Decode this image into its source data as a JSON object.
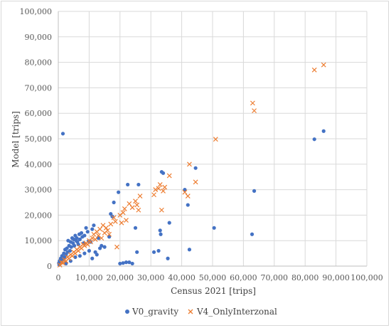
{
  "chart_data": {
    "type": "scatter",
    "title": "",
    "xlabel": "Census 2021 [trips]",
    "ylabel": "Model [trips]",
    "xlim": [
      0,
      100000
    ],
    "ylim": [
      0,
      100000
    ],
    "x_ticks": [
      "0",
      "10,000",
      "20,000",
      "30,000",
      "40,000",
      "50,000",
      "60,000",
      "70,000",
      "80,000",
      "90,000",
      "100,000"
    ],
    "y_ticks": [
      "0",
      "10,000",
      "20,000",
      "30,000",
      "40,000",
      "50,000",
      "60,000",
      "70,000",
      "80,000",
      "90,000",
      "100,000"
    ],
    "grid": true,
    "legend_position": "bottom",
    "series": [
      {
        "name": "V0_gravity",
        "marker": "circle",
        "color": "#4472c4",
        "points": [
          [
            86000,
            53000
          ],
          [
            83000,
            49800
          ],
          [
            63500,
            29500
          ],
          [
            62800,
            12500
          ],
          [
            50500,
            15000
          ],
          [
            44500,
            38500
          ],
          [
            42500,
            6500
          ],
          [
            42000,
            24000
          ],
          [
            41000,
            30000
          ],
          [
            36000,
            17000
          ],
          [
            35500,
            3000
          ],
          [
            34000,
            36500
          ],
          [
            33500,
            37000
          ],
          [
            33200,
            12500
          ],
          [
            33000,
            14000
          ],
          [
            32500,
            6000
          ],
          [
            31000,
            5500
          ],
          [
            26000,
            32000
          ],
          [
            25500,
            5500
          ],
          [
            25000,
            15000
          ],
          [
            24000,
            1000
          ],
          [
            22500,
            32000
          ],
          [
            22000,
            1500
          ],
          [
            21000,
            1200
          ],
          [
            20000,
            1000
          ],
          [
            19500,
            29000
          ],
          [
            23000,
            1500
          ],
          [
            18000,
            25000
          ],
          [
            17500,
            19500
          ],
          [
            17000,
            20500
          ],
          [
            16500,
            11500
          ],
          [
            15000,
            7500
          ],
          [
            14000,
            8000
          ],
          [
            13000,
            11000
          ],
          [
            12000,
            5500
          ],
          [
            11500,
            16000
          ],
          [
            11000,
            14500
          ],
          [
            10500,
            9500
          ],
          [
            9800,
            9800
          ],
          [
            9500,
            13500
          ],
          [
            9000,
            15000
          ],
          [
            8500,
            12000
          ],
          [
            8200,
            9000
          ],
          [
            7800,
            11500
          ],
          [
            7500,
            13000
          ],
          [
            7000,
            10500
          ],
          [
            6800,
            12500
          ],
          [
            6500,
            8500
          ],
          [
            6200,
            9500
          ],
          [
            6000,
            11000
          ],
          [
            5800,
            10000
          ],
          [
            5500,
            12000
          ],
          [
            5200,
            8000
          ],
          [
            5000,
            10500
          ],
          [
            4800,
            9000
          ],
          [
            4500,
            11000
          ],
          [
            4200,
            7500
          ],
          [
            4000,
            9500
          ],
          [
            3800,
            6000
          ],
          [
            3500,
            8000
          ],
          [
            3200,
            10000
          ],
          [
            3000,
            5500
          ],
          [
            2800,
            7000
          ],
          [
            2500,
            4500
          ],
          [
            2200,
            6500
          ],
          [
            2000,
            3500
          ],
          [
            1800,
            5000
          ],
          [
            1500,
            2500
          ],
          [
            1200,
            4000
          ],
          [
            1000,
            1500
          ],
          [
            800,
            3000
          ],
          [
            600,
            1000
          ],
          [
            400,
            2000
          ],
          [
            300,
            500
          ],
          [
            200,
            1200
          ],
          [
            1500,
            52000
          ],
          [
            2500,
            1000
          ],
          [
            4000,
            2000
          ],
          [
            5500,
            3500
          ],
          [
            7000,
            4000
          ],
          [
            8500,
            5000
          ],
          [
            10000,
            6000
          ],
          [
            11000,
            3000
          ],
          [
            12500,
            4500
          ],
          [
            13500,
            7000
          ]
        ]
      },
      {
        "name": "V4_OnlyInterzonal",
        "marker": "x",
        "color": "#ed7d31",
        "points": [
          [
            86000,
            79000
          ],
          [
            83000,
            77000
          ],
          [
            63000,
            64000
          ],
          [
            63500,
            61000
          ],
          [
            51000,
            49800
          ],
          [
            44500,
            33000
          ],
          [
            42500,
            40000
          ],
          [
            42000,
            27500
          ],
          [
            41000,
            29000
          ],
          [
            36000,
            35500
          ],
          [
            34500,
            31000
          ],
          [
            34000,
            29500
          ],
          [
            33500,
            22000
          ],
          [
            33000,
            32000
          ],
          [
            32500,
            30500
          ],
          [
            31500,
            30000
          ],
          [
            31000,
            28000
          ],
          [
            26500,
            27500
          ],
          [
            26000,
            22000
          ],
          [
            25500,
            24000
          ],
          [
            25000,
            25500
          ],
          [
            24000,
            23000
          ],
          [
            23000,
            24500
          ],
          [
            22000,
            18000
          ],
          [
            21500,
            22500
          ],
          [
            21000,
            21000
          ],
          [
            20500,
            17000
          ],
          [
            20000,
            20000
          ],
          [
            19000,
            7500
          ],
          [
            18500,
            17500
          ],
          [
            18000,
            19000
          ],
          [
            17000,
            16500
          ],
          [
            16500,
            12500
          ],
          [
            16000,
            14000
          ],
          [
            15500,
            15000
          ],
          [
            15000,
            13000
          ],
          [
            14500,
            16000
          ],
          [
            14000,
            11000
          ],
          [
            13500,
            14500
          ],
          [
            13000,
            12000
          ],
          [
            12500,
            13500
          ],
          [
            12000,
            10500
          ],
          [
            11500,
            12500
          ],
          [
            11000,
            11000
          ],
          [
            10500,
            9500
          ],
          [
            10000,
            10000
          ],
          [
            9500,
            8500
          ],
          [
            9000,
            9000
          ],
          [
            8500,
            8000
          ],
          [
            8000,
            8500
          ],
          [
            7500,
            7000
          ],
          [
            7000,
            7500
          ],
          [
            6500,
            6000
          ],
          [
            6000,
            6500
          ],
          [
            5500,
            5000
          ],
          [
            5000,
            5500
          ],
          [
            4500,
            4000
          ],
          [
            4000,
            4500
          ],
          [
            3500,
            3000
          ],
          [
            3000,
            3500
          ],
          [
            2500,
            2000
          ],
          [
            2000,
            2500
          ],
          [
            1500,
            1200
          ],
          [
            1000,
            1500
          ],
          [
            500,
            400
          ]
        ]
      }
    ]
  }
}
